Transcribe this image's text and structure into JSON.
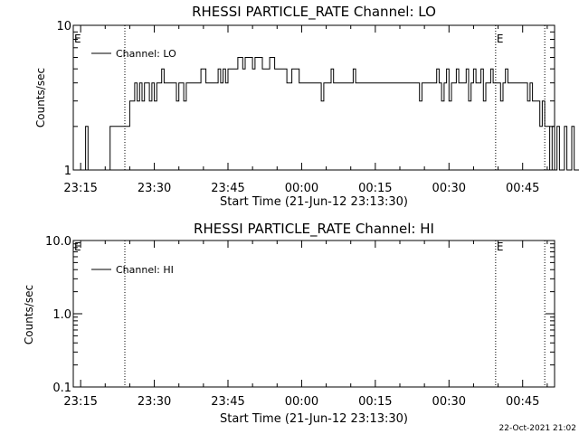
{
  "colors": {
    "background": "#ffffff",
    "foreground": "#000000"
  },
  "footer_timestamp": "22-Oct-2021 21:02",
  "chart_data": [
    {
      "type": "line",
      "title": "RHESSI PARTICLE_RATE Channel: LO",
      "xlabel": "Start Time (21-Jun-12 23:13:30)",
      "ylabel": "Counts/sec",
      "yscale": "log",
      "ylim": [
        1,
        10
      ],
      "yticks": [
        {
          "value": 1,
          "label": "1"
        },
        {
          "value": 10,
          "label": "10"
        }
      ],
      "xlim": [
        "23:13:30",
        "00:51:30"
      ],
      "xticks": [
        "23:15",
        "23:30",
        "23:45",
        "00:00",
        "00:15",
        "00:30",
        "00:45"
      ],
      "legend": {
        "position": "top-left"
      },
      "series": [
        {
          "name": "Channel: LO",
          "x_start": "23:13:30",
          "x_step_seconds": 30,
          "values": [
            1,
            1,
            1,
            1,
            1,
            2,
            1,
            1,
            1,
            1,
            1,
            1,
            1,
            1,
            1,
            2,
            2,
            2,
            2,
            2,
            2,
            2,
            2,
            3,
            3,
            4,
            3,
            4,
            3,
            4,
            4,
            3,
            4,
            3,
            4,
            4,
            5,
            4,
            4,
            4,
            4,
            4,
            3,
            4,
            4,
            3,
            4,
            4,
            4,
            4,
            4,
            4,
            5,
            5,
            4,
            4,
            4,
            4,
            4,
            5,
            4,
            5,
            4,
            5,
            5,
            5,
            5,
            6,
            6,
            5,
            6,
            6,
            6,
            5,
            6,
            6,
            6,
            5,
            5,
            5,
            6,
            6,
            5,
            5,
            5,
            5,
            5,
            4,
            4,
            5,
            5,
            5,
            4,
            4,
            4,
            4,
            4,
            4,
            4,
            4,
            4,
            3,
            4,
            4,
            4,
            5,
            4,
            4,
            4,
            4,
            4,
            4,
            4,
            4,
            5,
            4,
            4,
            4,
            4,
            4,
            4,
            4,
            4,
            4,
            4,
            4,
            4,
            4,
            4,
            4,
            4,
            4,
            4,
            4,
            4,
            4,
            4,
            4,
            4,
            4,
            4,
            3,
            4,
            4,
            4,
            4,
            4,
            4,
            5,
            4,
            3,
            4,
            5,
            3,
            4,
            4,
            5,
            4,
            4,
            4,
            5,
            3,
            4,
            5,
            4,
            4,
            5,
            3,
            4,
            4,
            5,
            4,
            4,
            4,
            3,
            4,
            5,
            4,
            4,
            4,
            4,
            4,
            4,
            4,
            4,
            3,
            4,
            3,
            3,
            3,
            2,
            3,
            2,
            2,
            1,
            2,
            1,
            2,
            1,
            1,
            2,
            1,
            1,
            2,
            1,
            1,
            1
          ],
          "tail_values": [
            2,
            1
          ]
        }
      ],
      "markers": [
        {
          "label": "E",
          "time": "23:13:30"
        },
        {
          "label": "",
          "time": "23:24:00"
        },
        {
          "label": "E",
          "time": "00:39:30"
        },
        {
          "label": "",
          "time": "00:49:30"
        }
      ]
    },
    {
      "type": "line",
      "title": "RHESSI PARTICLE_RATE Channel: HI",
      "xlabel": "Start Time (21-Jun-12 23:13:30)",
      "ylabel": "Counts/sec",
      "yscale": "log",
      "ylim": [
        0.1,
        10
      ],
      "yticks": [
        {
          "value": 0.1,
          "label": "0.1"
        },
        {
          "value": 1,
          "label": "1.0"
        },
        {
          "value": 10,
          "label": "10.0"
        }
      ],
      "xlim": [
        "23:13:30",
        "00:51:30"
      ],
      "xticks": [
        "23:15",
        "23:30",
        "23:45",
        "00:00",
        "00:15",
        "00:30",
        "00:45"
      ],
      "legend": {
        "position": "top-left"
      },
      "series": [
        {
          "name": "Channel: HI",
          "x_start": "23:13:30",
          "x_step_seconds": 30,
          "values": []
        }
      ],
      "markers": [
        {
          "label": "E",
          "time": "23:13:30"
        },
        {
          "label": "",
          "time": "23:24:00"
        },
        {
          "label": "E",
          "time": "00:39:30"
        },
        {
          "label": "",
          "time": "00:49:30"
        }
      ]
    }
  ]
}
